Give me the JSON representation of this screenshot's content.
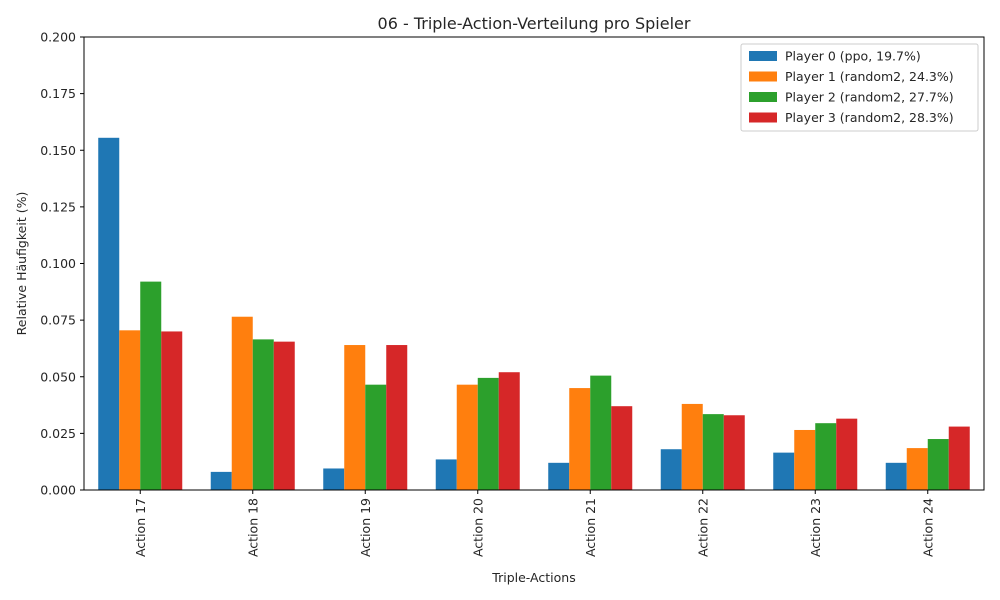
{
  "chart_data": {
    "type": "bar",
    "title": "06 - Triple-Action-Verteilung pro Spieler",
    "xlabel": "Triple-Actions",
    "ylabel": "Relative Häufigkeit (%)",
    "ylim": [
      0,
      0.2
    ],
    "yticks": [
      "0.000",
      "0.025",
      "0.050",
      "0.075",
      "0.100",
      "0.125",
      "0.150",
      "0.175",
      "0.200"
    ],
    "grid": false,
    "legend_position": "top-right",
    "categories": [
      "Action 17",
      "Action 18",
      "Action 19",
      "Action 20",
      "Action 21",
      "Action 22",
      "Action 23",
      "Action 24"
    ],
    "series": [
      {
        "name": "Player 0 (ppo, 19.7%)",
        "color": "#1f77b4",
        "values": [
          0.1555,
          0.008,
          0.0095,
          0.0135,
          0.012,
          0.018,
          0.0165,
          0.012
        ]
      },
      {
        "name": "Player 1 (random2, 24.3%)",
        "color": "#ff7f0e",
        "values": [
          0.0705,
          0.0765,
          0.064,
          0.0465,
          0.045,
          0.038,
          0.0265,
          0.0185
        ]
      },
      {
        "name": "Player 2 (random2, 27.7%)",
        "color": "#2ca02c",
        "values": [
          0.092,
          0.0665,
          0.0465,
          0.0495,
          0.0505,
          0.0335,
          0.0295,
          0.0225
        ]
      },
      {
        "name": "Player 3 (random2, 28.3%)",
        "color": "#d62728",
        "values": [
          0.07,
          0.0655,
          0.064,
          0.052,
          0.037,
          0.033,
          0.0315,
          0.028
        ]
      }
    ]
  }
}
